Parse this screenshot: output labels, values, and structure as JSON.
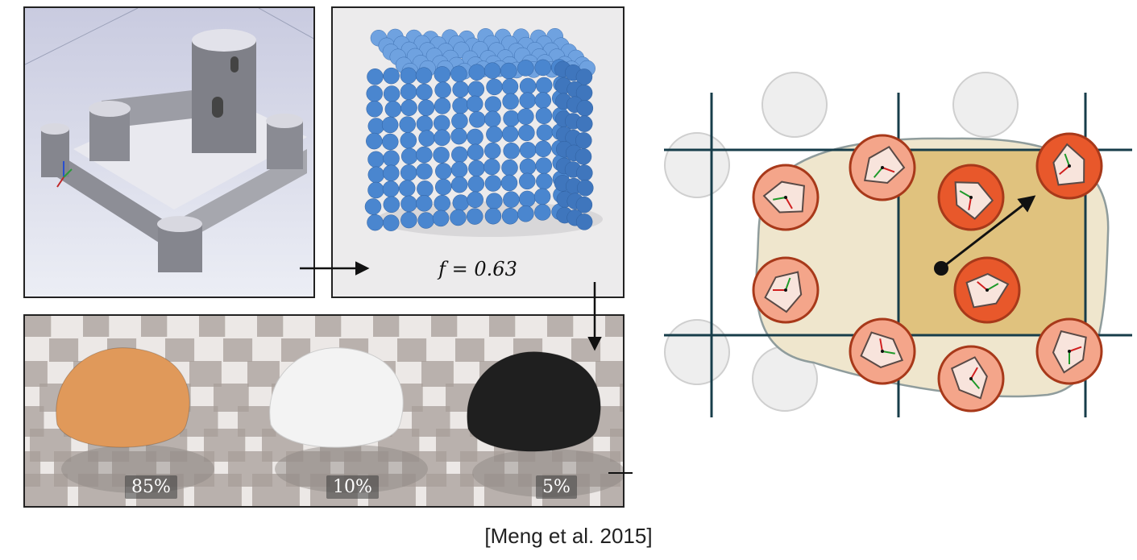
{
  "castle_panel": {
    "image": "snow castle render"
  },
  "spheres_panel": {
    "formula": "f = 0.63",
    "sphere_color": "#4a86cf"
  },
  "materials_panel": {
    "items": [
      {
        "percent": "85%",
        "color": "#e0995a"
      },
      {
        "percent": "10%",
        "color": "#f3f3f3"
      },
      {
        "percent": "5%",
        "color": "#1f1f1f"
      }
    ]
  },
  "grid_diagram": {
    "cell_fill": "#e0c27e",
    "blob_fill": "#efe6cd",
    "grid_color": "#173d4a",
    "particle_fill": "#f4a58a",
    "particle_fill_dark": "#e8582b",
    "particle_stroke": "#a8391a"
  },
  "citation": "[Meng et al. 2015]"
}
